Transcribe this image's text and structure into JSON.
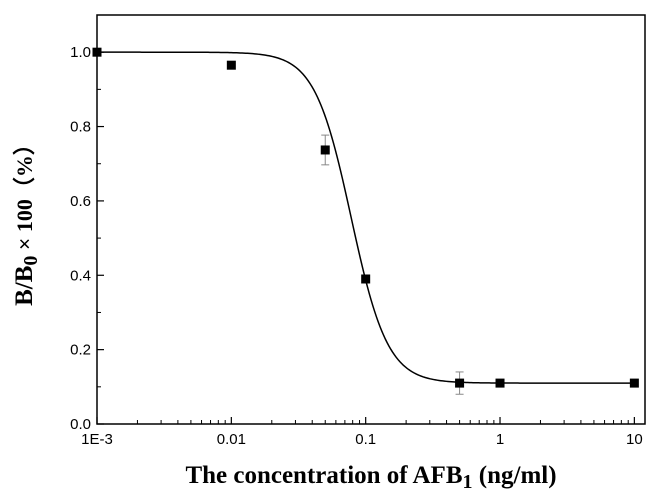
{
  "chart_data": {
    "type": "scatter",
    "x_scale": "log",
    "xlim": [
      0.001,
      12
    ],
    "ylim": [
      0.0,
      1.1
    ],
    "x_ticks": [
      {
        "value": 0.001,
        "label": "1E-3"
      },
      {
        "value": 0.01,
        "label": "0.01"
      },
      {
        "value": 0.1,
        "label": "0.1"
      },
      {
        "value": 1,
        "label": "1"
      },
      {
        "value": 10,
        "label": "10"
      }
    ],
    "y_ticks": [
      {
        "value": 0.0,
        "label": "0.0"
      },
      {
        "value": 0.2,
        "label": "0.2"
      },
      {
        "value": 0.4,
        "label": "0.4"
      },
      {
        "value": 0.6,
        "label": "0.6"
      },
      {
        "value": 0.8,
        "label": "0.8"
      },
      {
        "value": 1.0,
        "label": "1.0"
      }
    ],
    "xlabel": {
      "main": "The concentration of AFB",
      "sub": "1",
      "tail": " (ng/ml)"
    },
    "ylabel": {
      "main": "B/B",
      "sub": "0",
      "tail": " × 100（%）"
    },
    "series": [
      {
        "points": [
          {
            "x": 0.001,
            "y": 1.0,
            "err": 0
          },
          {
            "x": 0.01,
            "y": 0.965,
            "err": 0
          },
          {
            "x": 0.05,
            "y": 0.737,
            "err": 0.04
          },
          {
            "x": 0.1,
            "y": 0.39,
            "err": 0
          },
          {
            "x": 0.5,
            "y": 0.11,
            "err": 0.03
          },
          {
            "x": 1,
            "y": 0.11,
            "err": 0
          },
          {
            "x": 10,
            "y": 0.11,
            "err": 0
          }
        ],
        "fit": {
          "type": "logistic",
          "top": 1.0,
          "bottom": 0.11,
          "x0": 0.078,
          "p": 3.2
        }
      }
    ],
    "grid": false,
    "legend": "none",
    "colors": {
      "marker": "#000000",
      "line": "#000000",
      "errorbar": "#888888"
    }
  }
}
